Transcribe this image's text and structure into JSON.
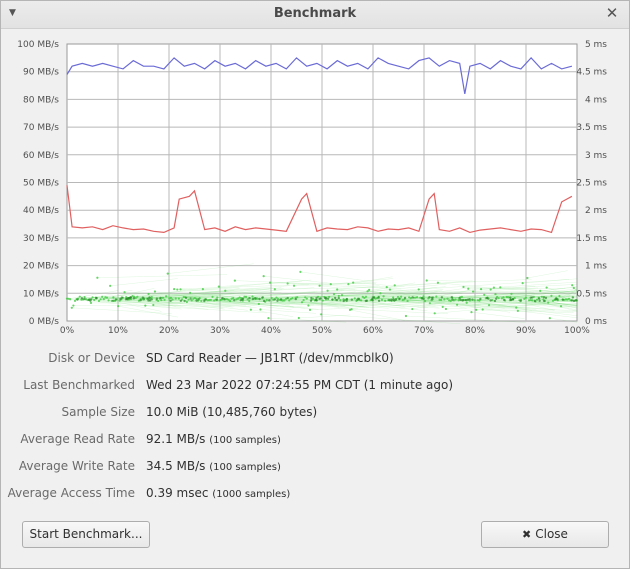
{
  "window": {
    "title": "Benchmark",
    "menu_icon": "chevron-down-icon",
    "close_icon": "close-icon"
  },
  "chart_data": {
    "type": "line",
    "x_tick_labels": [
      "0%",
      "10%",
      "20%",
      "30%",
      "40%",
      "50%",
      "60%",
      "70%",
      "80%",
      "90%",
      "100%"
    ],
    "y_left_tick_labels": [
      "0 MB/s",
      "10 MB/s",
      "20 MB/s",
      "30 MB/s",
      "40 MB/s",
      "50 MB/s",
      "60 MB/s",
      "70 MB/s",
      "80 MB/s",
      "90 MB/s",
      "100 MB/s"
    ],
    "y_right_tick_labels": [
      "0 ms",
      "0.5 ms",
      "1 ms",
      "1.5 ms",
      "2 ms",
      "2.5 ms",
      "3 ms",
      "3.5 ms",
      "4 ms",
      "4.5 ms",
      "5 ms"
    ],
    "xlim": [
      0,
      100
    ],
    "ylim_left": [
      0,
      100
    ],
    "ylim_right": [
      0,
      5
    ],
    "grid": true,
    "series": [
      {
        "color": "#6b6bd6",
        "axis": "left",
        "x": [
          0,
          1,
          3,
          5,
          7,
          9,
          11,
          13,
          15,
          17,
          19,
          21,
          23,
          25,
          27,
          29,
          31,
          33,
          35,
          37,
          39,
          41,
          43,
          45,
          47,
          49,
          51,
          53,
          55,
          57,
          59,
          61,
          63,
          65,
          67,
          69,
          71,
          73,
          75,
          77,
          78,
          79,
          81,
          83,
          85,
          87,
          89,
          91,
          93,
          95,
          97,
          99
        ],
        "values": [
          89,
          92,
          93,
          92,
          93,
          92,
          91,
          94,
          92,
          92,
          91,
          95,
          92,
          93,
          91,
          94,
          92,
          93,
          91,
          94,
          92,
          93,
          91,
          95,
          92,
          93,
          91,
          94,
          92,
          93,
          91,
          95,
          93,
          92,
          91,
          94,
          95,
          92,
          94,
          93,
          82,
          92,
          93,
          91,
          94,
          92,
          91,
          95,
          91,
          93,
          91,
          92
        ]
      },
      {
        "color": "#e06060",
        "axis": "right",
        "x": [
          0,
          1,
          3,
          5,
          7,
          9,
          11,
          13,
          15,
          17,
          19,
          21,
          22,
          24,
          25,
          27,
          29,
          31,
          33,
          35,
          37,
          39,
          41,
          43,
          46,
          47,
          49,
          50,
          51,
          53,
          55,
          57,
          59,
          61,
          63,
          65,
          67,
          69,
          71,
          72,
          73,
          75,
          77,
          79,
          81,
          83,
          85,
          87,
          89,
          91,
          93,
          95,
          97,
          98,
          99
        ],
        "values": [
          2.45,
          1.7,
          1.68,
          1.7,
          1.65,
          1.72,
          1.68,
          1.65,
          1.66,
          1.62,
          1.6,
          1.68,
          2.2,
          2.25,
          2.35,
          1.65,
          1.68,
          1.62,
          1.7,
          1.65,
          1.68,
          1.66,
          1.64,
          1.62,
          2.2,
          2.3,
          1.62,
          1.65,
          1.68,
          1.66,
          1.65,
          1.7,
          1.68,
          1.62,
          1.66,
          1.65,
          1.68,
          1.62,
          2.2,
          2.3,
          1.65,
          1.62,
          1.68,
          1.6,
          1.64,
          1.66,
          1.68,
          1.65,
          1.62,
          1.66,
          1.65,
          1.6,
          2.15,
          2.2,
          2.25
        ]
      }
    ],
    "access_scatter": {
      "color": "#44cc44",
      "axis": "right",
      "samples": 1000,
      "typical_ms": 0.39
    }
  },
  "info": {
    "rows": [
      {
        "label": "Disk or Device",
        "value": "SD Card Reader — JB1RT (/dev/mmcblk0)",
        "suffix": ""
      },
      {
        "label": "Last Benchmarked",
        "value": "Wed 23 Mar 2022 07:24:55 PM CDT (1 minute ago)",
        "suffix": ""
      },
      {
        "label": "Sample Size",
        "value": "10.0 MiB (10,485,760 bytes)",
        "suffix": ""
      },
      {
        "label": "Average Read Rate",
        "value": "92.1 MB/s",
        "suffix": "(100 samples)"
      },
      {
        "label": "Average Write Rate",
        "value": "34.5 MB/s",
        "suffix": "(100 samples)"
      },
      {
        "label": "Average Access Time",
        "value": "0.39 msec",
        "suffix": "(1000 samples)"
      }
    ]
  },
  "buttons": {
    "start_label": "Start Benchmark...",
    "close_label": "Close",
    "close_icon": "close-icon"
  }
}
